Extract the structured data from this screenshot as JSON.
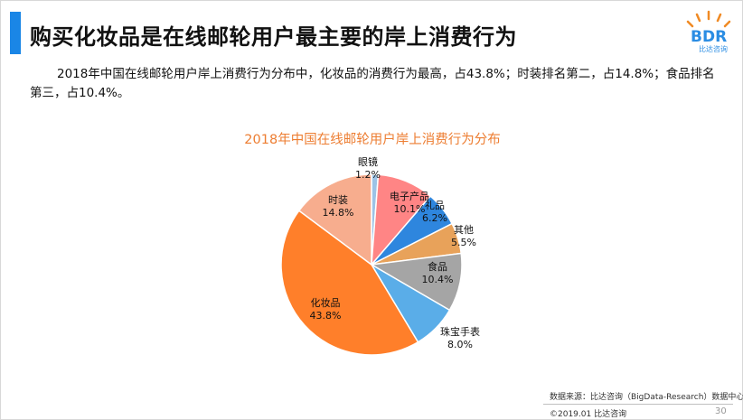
{
  "header": {
    "title": "购买化妆品是在线邮轮用户最主要的岸上消费行为"
  },
  "logo": {
    "text": "BDR",
    "sub": "比达咨询"
  },
  "description": "2018年中国在线邮轮用户岸上消费行为分布中，化妆品的消费行为最高，占43.8%；时装排名第二，占14.8%；食品排名第三，占10.4%。",
  "chart_data": {
    "type": "pie",
    "title": "2018年中国在线邮轮用户岸上消费行为分布",
    "slices": [
      {
        "name": "眼镜",
        "value": 1.2,
        "label": "1.2%",
        "color": "#9dc3e6"
      },
      {
        "name": "电子产品",
        "value": 10.1,
        "label": "10.1%",
        "color": "#ff8585"
      },
      {
        "name": "礼品",
        "value": 6.2,
        "label": "6.2%",
        "color": "#2e86de"
      },
      {
        "name": "其他",
        "value": 5.5,
        "label": "5.5%",
        "color": "#e8a25a"
      },
      {
        "name": "食品",
        "value": 10.4,
        "label": "10.4%",
        "color": "#a5a5a5"
      },
      {
        "name": "珠宝手表",
        "value": 8.0,
        "label": "8.0%",
        "color": "#5aade8"
      },
      {
        "name": "化妆品",
        "value": 43.8,
        "label": "43.8%",
        "color": "#ff7f2a"
      },
      {
        "name": "时装",
        "value": 14.8,
        "label": "14.8%",
        "color": "#f7ad8e"
      }
    ],
    "start_angle": "12 o'clock, clockwise"
  },
  "footer": {
    "source": "数据来源：比达咨询（BigData-Research）数据中心",
    "copyright": "©2019.01  比达咨询",
    "page": "30"
  }
}
